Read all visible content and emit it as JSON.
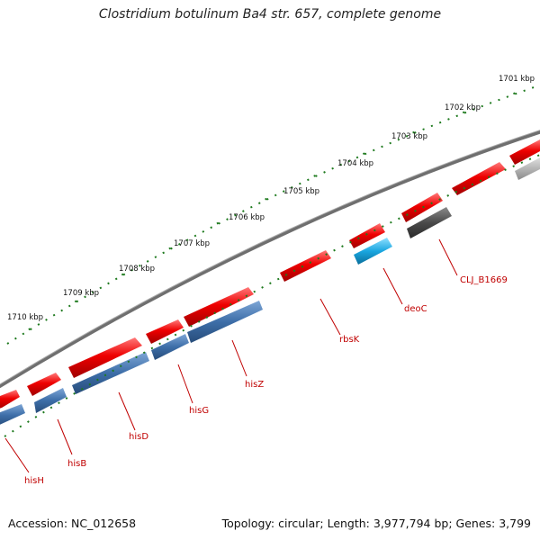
{
  "title": "Clostridium botulinum Ba4 str. 657, complete genome",
  "footer": {
    "accession": "Accession: NC_012658",
    "topology": "Topology: circular; Length: 3,977,794 bp; Genes: 3,799"
  },
  "ticks": [
    "1701 kbp",
    "1702 kbp",
    "1703 kbp",
    "1704 kbp",
    "1705 kbp",
    "1706 kbp",
    "1707 kbp",
    "1708 kbp",
    "1709 kbp",
    "1710 kbp"
  ],
  "gene_labels": [
    "CLJ_B1669",
    "deoC",
    "rbsK",
    "hisZ",
    "hisG",
    "hisD",
    "hisB",
    "hisH"
  ],
  "colors": {
    "backbone": "#6f6f6f",
    "forward_red": "#e60000",
    "reverse_blue": "#3d6ea8",
    "deoC_cyan": "#1aa6e0",
    "dark_gray": "#4a4a4a",
    "light_gray": "#b5b5b5",
    "tick_green": "#1e7a1e",
    "label_red": "#c00000"
  }
}
